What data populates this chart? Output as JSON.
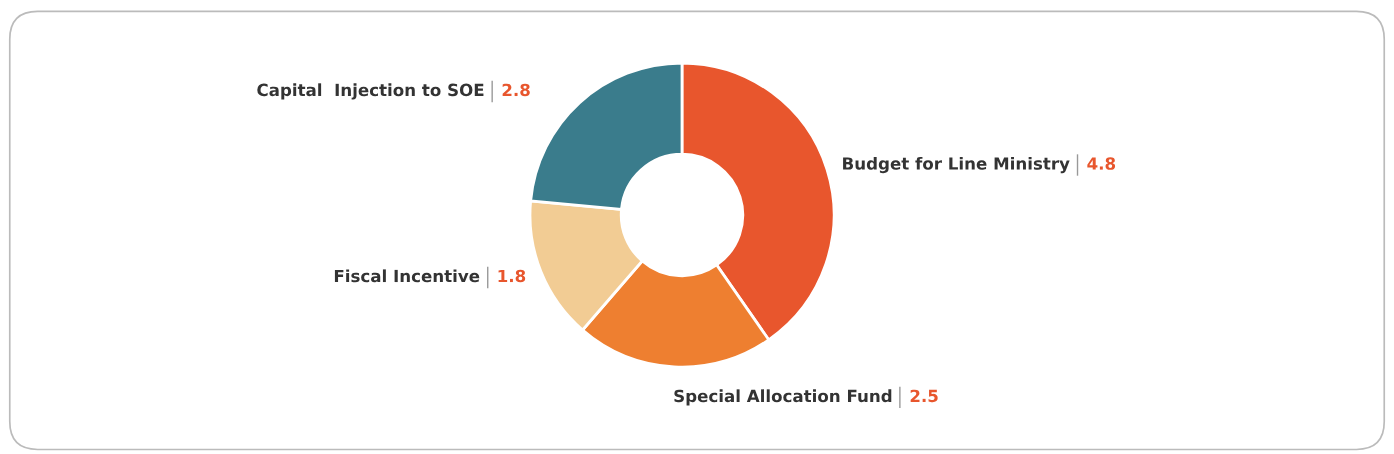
{
  "chart_data": {
    "type": "donut",
    "categories": [
      "Budget for Line Ministry",
      "Special Allocation Fund",
      "Fiscal Incentive",
      "Capital  Injection to SOE"
    ],
    "values": [
      4.8,
      2.5,
      1.8,
      2.8
    ],
    "colors": [
      "#e8562d",
      "#ee7f30",
      "#f2cc94",
      "#3a7c8c"
    ],
    "data_labels": true
  }
}
